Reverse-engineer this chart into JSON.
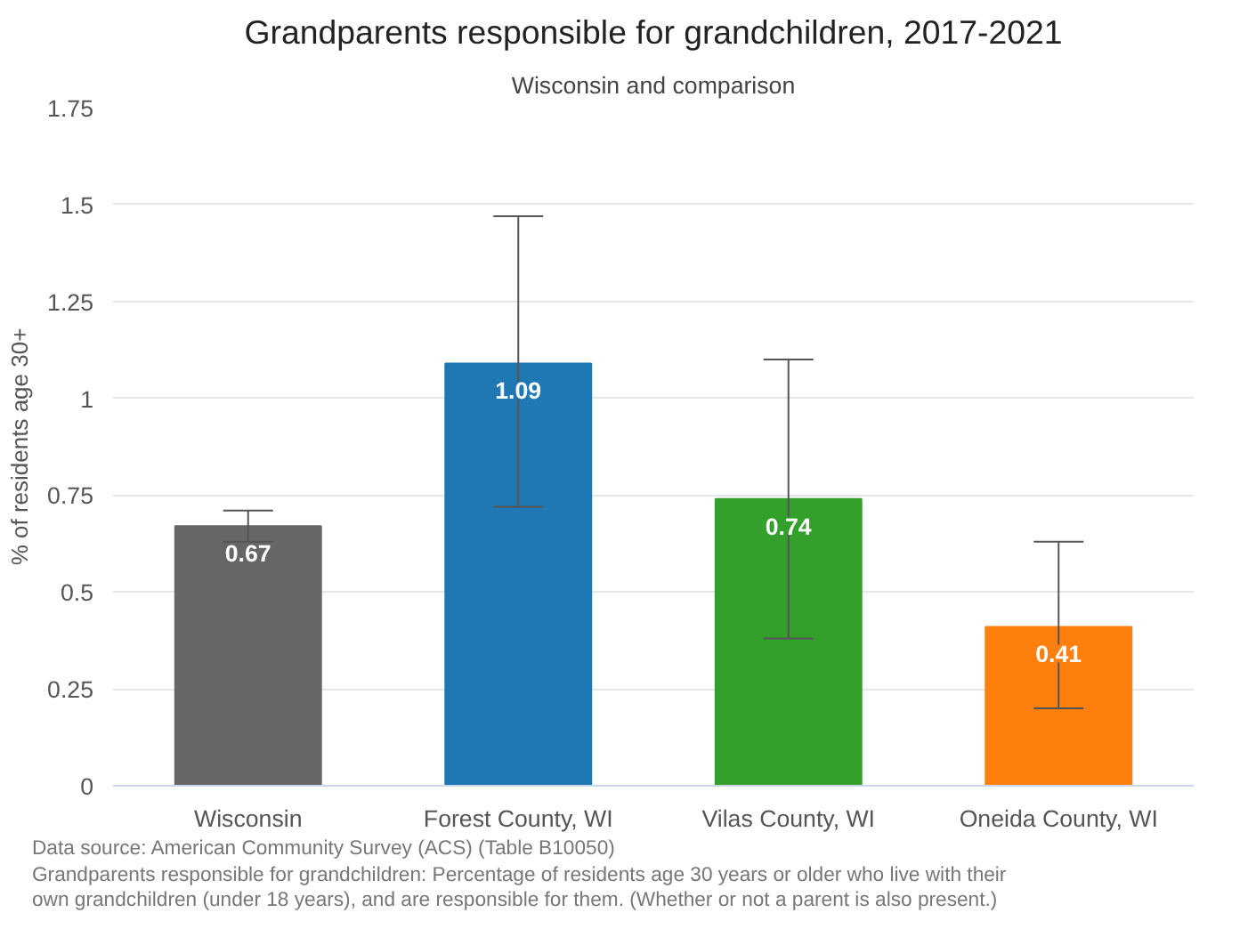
{
  "chart_data": {
    "type": "bar",
    "title": "Grandparents responsible for grandchildren, 2017-2021",
    "subtitle": "Wisconsin and comparison",
    "ylabel": "% of residents age 30+",
    "categories": [
      "Wisconsin",
      "Forest County, WI",
      "Vilas County, WI",
      "Oneida County, WI"
    ],
    "values": [
      0.67,
      1.09,
      0.74,
      0.41
    ],
    "colors": [
      "#666666",
      "#1f77b4",
      "#33a02c",
      "#ff7f0e"
    ],
    "errors": [
      [
        0.63,
        0.71
      ],
      [
        0.72,
        1.47
      ],
      [
        0.38,
        1.1
      ],
      [
        0.2,
        0.63
      ]
    ],
    "ylim": [
      0,
      1.75
    ],
    "yticks": [
      0,
      0.25,
      0.5,
      0.75,
      1,
      1.25,
      1.5,
      1.75
    ],
    "grid": "y",
    "data_labels": true,
    "annotations": [
      "Data source: American Community Survey (ACS) (Table B10050)",
      "Grandparents responsible for grandchildren: Percentage of residents age 30 years or older who live with their own grandchildren (under 18 years), and are responsible for them. (Whether or not a parent is also present.)"
    ]
  }
}
